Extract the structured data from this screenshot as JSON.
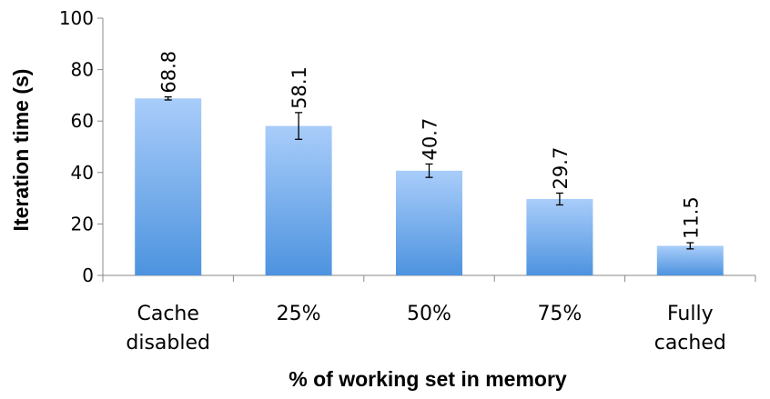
{
  "chart_data": {
    "type": "bar",
    "title": "",
    "xlabel": "% of working set in memory",
    "ylabel": "Iteration time (s)",
    "ylim": [
      0,
      100
    ],
    "yticks": [
      0,
      20,
      40,
      60,
      80,
      100
    ],
    "categories": [
      [
        "Cache",
        "disabled"
      ],
      [
        "25%"
      ],
      [
        "50%"
      ],
      [
        "75%"
      ],
      [
        "Fully",
        "cached"
      ]
    ],
    "values": [
      68.8,
      58.1,
      40.7,
      29.7,
      11.5
    ],
    "value_labels": [
      "68.8",
      "58.1",
      "40.7",
      "29.7",
      "11.5"
    ],
    "error": [
      0.6,
      5.2,
      2.6,
      2.3,
      1.2
    ],
    "grid": false,
    "legend": "none",
    "bar_color_top": "#a9cdfa",
    "bar_color_bottom": "#4d93df"
  }
}
